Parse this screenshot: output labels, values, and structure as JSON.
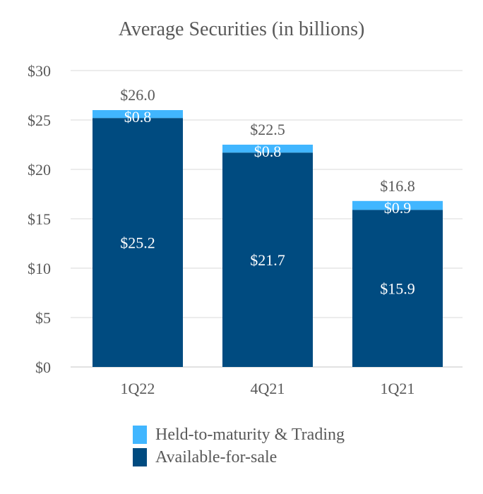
{
  "chart_data": {
    "type": "bar",
    "stacked": true,
    "title": "Average Securities (in billions)",
    "categories": [
      "1Q22",
      "4Q21",
      "1Q21"
    ],
    "series": [
      {
        "name": "Available-for-sale",
        "color": "#004b80",
        "values": [
          25.2,
          21.7,
          15.9
        ],
        "labels": [
          "$25.2",
          "$21.7",
          "$15.9"
        ]
      },
      {
        "name": "Held-to-maturity & Trading",
        "color": "#41b6ff",
        "values": [
          0.8,
          0.8,
          0.9
        ],
        "labels": [
          "$0.8",
          "$0.8",
          "$0.9"
        ]
      }
    ],
    "totals": [
      26.0,
      22.5,
      16.8
    ],
    "total_labels": [
      "$26.0",
      "$22.5",
      "$16.8"
    ],
    "ylim": [
      0,
      30
    ],
    "yticks": [
      0,
      5,
      10,
      15,
      20,
      25,
      30
    ],
    "ytick_labels": [
      "$0",
      "$5",
      "$10",
      "$15",
      "$20",
      "$25",
      "$30"
    ],
    "grid": true,
    "legend_position": "bottom"
  }
}
